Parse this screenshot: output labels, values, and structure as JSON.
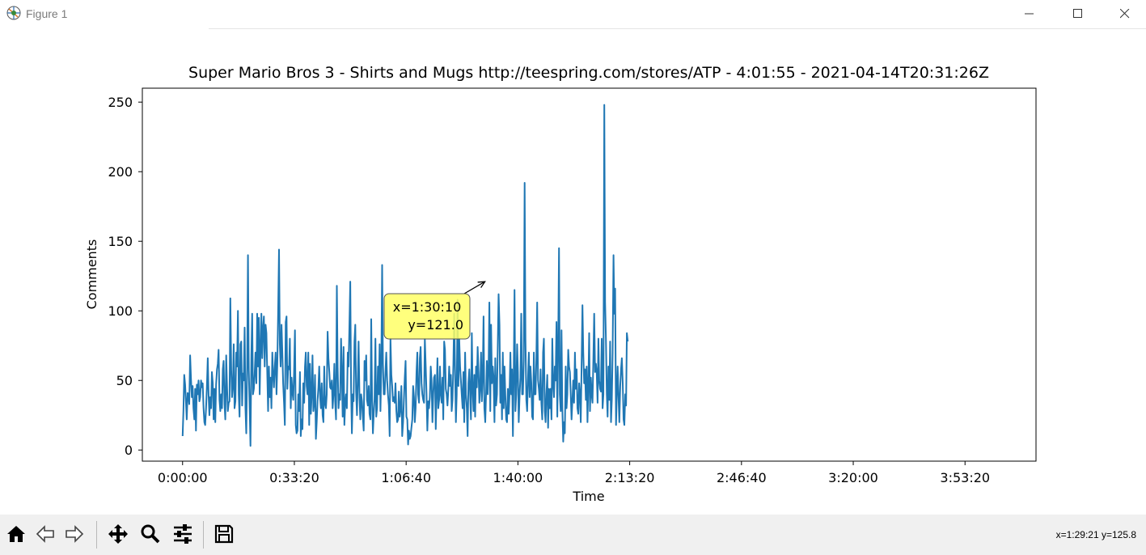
{
  "window": {
    "title": "Figure 1",
    "icons": [
      "app-icon",
      "minimize-icon",
      "maximize-icon",
      "close-icon"
    ]
  },
  "chart_data": {
    "type": "line",
    "title": "Super Mario Bros 3 - Shirts and Mugs http://teespring.com/stores/ATP - 4:01:55 - 2021-04-14T20:31:26Z",
    "xlabel": "Time",
    "ylabel": "Comments",
    "xlim_seconds": [
      -720,
      15270
    ],
    "ylim": [
      -8,
      260
    ],
    "x_ticks": [
      {
        "label": "0:00:00",
        "seconds": 0
      },
      {
        "label": "0:33:20",
        "seconds": 2000
      },
      {
        "label": "1:06:40",
        "seconds": 4000
      },
      {
        "label": "1:40:00",
        "seconds": 6000
      },
      {
        "label": "2:13:20",
        "seconds": 8000
      },
      {
        "label": "2:46:40",
        "seconds": 10000
      },
      {
        "label": "3:20:00",
        "seconds": 12000
      },
      {
        "label": "3:53:20",
        "seconds": 14000
      }
    ],
    "y_ticks": [
      0,
      50,
      100,
      150,
      200,
      250
    ],
    "line_color": "#1f77b4",
    "grid": false,
    "sample_interval_seconds": 15,
    "series": [
      {
        "values": [
          10,
          28,
          54,
          47,
          35,
          22,
          41,
          40,
          33,
          68,
          52,
          38,
          46,
          30,
          22,
          44,
          14,
          47,
          40,
          50,
          35,
          38,
          50,
          45,
          48,
          30,
          20,
          18,
          30,
          45,
          66,
          40,
          25,
          38,
          30,
          56,
          48,
          22,
          44,
          20,
          47,
          58,
          62,
          72,
          36,
          28,
          40,
          30,
          58,
          64,
          33,
          22,
          68,
          46,
          28,
          34,
          35,
          109,
          58,
          38,
          46,
          76,
          30,
          35,
          70,
          60,
          100,
          40,
          24,
          76,
          78,
          32,
          55,
          50,
          88,
          30,
          12,
          60,
          140,
          58,
          30,
          3,
          68,
          98,
          40,
          44,
          55,
          70,
          48,
          98,
          60,
          95,
          40,
          74,
          98,
          66,
          88,
          96,
          60,
          90,
          84,
          54,
          28,
          60,
          38,
          52,
          30,
          70,
          55,
          45,
          60,
          70,
          40,
          62,
          98,
          144,
          76,
          60,
          90,
          70,
          48,
          34,
          18,
          92,
          96,
          44,
          60,
          58,
          80,
          30,
          52,
          42,
          36,
          56,
          86,
          18,
          12,
          14,
          40,
          28,
          56,
          10,
          22,
          15,
          48,
          34,
          60,
          70,
          46,
          40,
          70,
          18,
          62,
          26,
          40,
          68,
          28,
          34,
          54,
          8,
          20,
          35,
          45,
          60,
          38,
          30,
          48,
          25,
          20,
          60,
          33,
          30,
          40,
          85,
          66,
          56,
          45,
          44,
          50,
          30,
          40,
          62,
          35,
          22,
          118,
          60,
          30,
          40,
          36,
          80,
          55,
          24,
          74,
          18,
          34,
          40,
          30,
          70,
          60,
          88,
          121,
          45,
          12,
          40,
          35,
          78,
          90,
          42,
          25,
          50,
          78,
          38,
          22,
          40,
          35,
          24,
          14,
          64,
          50,
          68,
          36,
          32,
          46,
          26,
          22,
          94,
          40,
          12,
          26,
          36,
          80,
          24,
          30,
          60,
          40,
          76,
          28,
          56,
          133,
          62,
          40,
          40,
          56,
          70,
          50,
          40,
          32,
          10,
          80,
          54,
          46,
          35,
          38,
          34,
          48,
          28,
          20,
          22,
          42,
          24,
          30,
          46,
          10,
          20,
          36,
          52,
          64,
          24,
          22,
          4,
          14,
          8,
          10,
          16,
          22,
          46,
          38,
          20,
          30,
          56,
          70,
          40,
          34,
          66,
          74,
          48,
          40,
          36,
          34,
          80,
          60,
          40,
          14,
          35,
          30,
          38,
          60,
          50,
          20,
          40,
          52,
          54,
          15,
          40,
          66,
          30,
          36,
          60,
          40,
          34,
          52,
          22,
          78,
          72,
          44,
          40,
          32,
          44,
          60,
          46,
          54,
          28,
          36,
          62,
          98,
          60,
          20,
          40,
          108,
          46,
          80,
          60,
          50,
          40,
          30,
          56,
          20,
          70,
          40,
          30,
          10,
          48,
          58,
          40,
          22,
          84,
          44,
          28,
          54,
          24,
          60,
          45,
          74,
          56,
          34,
          44,
          70,
          35,
          54,
          96,
          30,
          20,
          40,
          64,
          40,
          58,
          106,
          28,
          90,
          48,
          60,
          52,
          20,
          66,
          32,
          40,
          75,
          112,
          90,
          34,
          54,
          22,
          70,
          30,
          60,
          40,
          22,
          20,
          44,
          26,
          40,
          70,
          40,
          58,
          10,
          54,
          115,
          28,
          40,
          76,
          56,
          20,
          40,
          52,
          98,
          40,
          40,
          64,
          192,
          80,
          36,
          28,
          50,
          70,
          38,
          60,
          48,
          24,
          22,
          70,
          40,
          40,
          66,
          106,
          50,
          44,
          36,
          58,
          34,
          22,
          70,
          80,
          28,
          20,
          40,
          54,
          16,
          44,
          30,
          44,
          22,
          80,
          48,
          38,
          60,
          50,
          92,
          24,
          70,
          145,
          40,
          28,
          86,
          30,
          6,
          20,
          12,
          60,
          30,
          40,
          72,
          60,
          56,
          40,
          22,
          36,
          50,
          34,
          70,
          44,
          58,
          30,
          26,
          48,
          40,
          20,
          64,
          104,
          70,
          48,
          58,
          36,
          60,
          20,
          48,
          84,
          28,
          52,
          40,
          34,
          66,
          98,
          56,
          62,
          56,
          34,
          80,
          50,
          44,
          42,
          80,
          30,
          40,
          248,
          106,
          80,
          40,
          24,
          60,
          36,
          78,
          20,
          36,
          70,
          140,
          98,
          116,
          18,
          40,
          60,
          38,
          20,
          46,
          58,
          66,
          48,
          22,
          18,
          40,
          32,
          84,
          78
        ]
      }
    ],
    "annotation": {
      "text_line1": "x=1:30:10",
      "text_line2": "y=121.0",
      "point_seconds": 5410,
      "point_value": 121.0,
      "bg": "#ffff66"
    }
  },
  "toolbar": {
    "buttons": [
      "home-icon",
      "back-icon",
      "forward-icon",
      "pan-icon",
      "zoom-icon",
      "configure-subplots-icon",
      "save-icon"
    ],
    "cursor_readout": "x=1:29:21 y=125.8"
  }
}
